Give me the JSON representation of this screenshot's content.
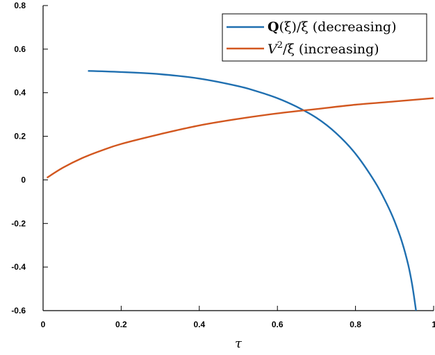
{
  "chart_data": {
    "type": "line",
    "title": "",
    "xlabel": "τ",
    "ylabel": "",
    "xlim": [
      0,
      1
    ],
    "ylim": [
      -0.6,
      0.8
    ],
    "x_ticks": [
      0,
      0.2,
      0.4,
      0.6,
      0.8,
      1
    ],
    "x_tick_labels": [
      "0",
      "0.2",
      "0.4",
      "0.6",
      "0.8",
      "1"
    ],
    "y_ticks": [
      0.8,
      0.6,
      0.4,
      0.2,
      0,
      -0.2,
      -0.4,
      -0.6
    ],
    "y_tick_labels": [
      "0.8",
      "0.6",
      "0.4",
      "0.2",
      "0",
      "-0.2",
      "-0.4",
      "-0.6"
    ],
    "grid": false,
    "legend_position": "top-right",
    "series": [
      {
        "name": "Q(ξ)/ξ (decreasing)",
        "color": "#1f6fb0",
        "x": [
          0.115,
          0.2,
          0.3,
          0.4,
          0.5,
          0.55,
          0.6,
          0.65,
          0.7,
          0.75,
          0.8,
          0.85,
          0.88,
          0.9,
          0.92,
          0.935,
          0.945,
          0.955
        ],
        "y": [
          0.5,
          0.495,
          0.485,
          0.465,
          0.43,
          0.405,
          0.375,
          0.335,
          0.285,
          0.215,
          0.12,
          -0.01,
          -0.11,
          -0.19,
          -0.29,
          -0.39,
          -0.48,
          -0.6
        ]
      },
      {
        "name": "V²/ξ (increasing)",
        "color": "#d2571f",
        "x": [
          0.01,
          0.05,
          0.1,
          0.15,
          0.2,
          0.3,
          0.4,
          0.5,
          0.6,
          0.7,
          0.8,
          0.9,
          1.0
        ],
        "y": [
          0.01,
          0.055,
          0.1,
          0.135,
          0.165,
          0.21,
          0.25,
          0.28,
          0.305,
          0.325,
          0.345,
          0.36,
          0.375
        ]
      }
    ]
  },
  "legend": {
    "items": [
      {
        "prefix": "Q",
        "rest": "(ξ)/ξ (decreasing)"
      },
      {
        "prefix": "V",
        "sup": "2",
        "rest": "/ξ (increasing)"
      }
    ]
  }
}
